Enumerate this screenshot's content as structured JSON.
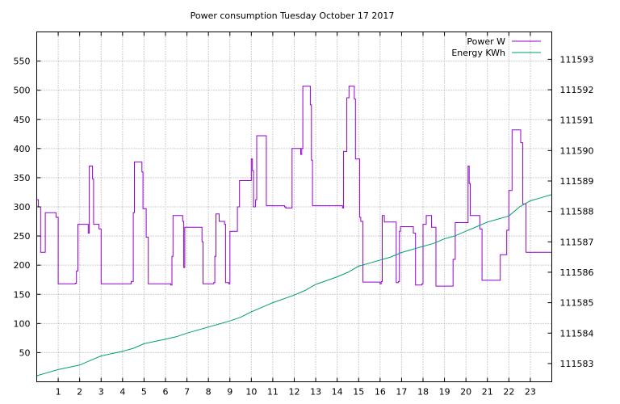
{
  "chart_data": {
    "type": "line",
    "title": "Power consumption Tuesday October 17 2017",
    "xlabel": "",
    "ylabel": "",
    "y2label": "",
    "grid": true,
    "legend_position": "top-right",
    "xlim": [
      0,
      24
    ],
    "ylim": [
      0,
      600
    ],
    "y2lim": [
      111582.4,
      111593.9
    ],
    "x_ticks": [
      1,
      2,
      3,
      4,
      5,
      6,
      7,
      8,
      9,
      10,
      11,
      12,
      13,
      14,
      15,
      16,
      17,
      18,
      19,
      20,
      21,
      22,
      23
    ],
    "y_ticks": [
      50,
      100,
      150,
      200,
      250,
      300,
      350,
      400,
      450,
      500,
      550
    ],
    "y2_ticks": [
      111583,
      111584,
      111585,
      111586,
      111587,
      111588,
      111589,
      111590,
      111591,
      111592,
      111593
    ],
    "series": [
      {
        "name": "Power W",
        "color": "#9400d3",
        "axis": "left",
        "step": true,
        "points": [
          [
            0.0,
            312
          ],
          [
            0.08,
            300
          ],
          [
            0.18,
            222
          ],
          [
            0.4,
            290
          ],
          [
            0.9,
            282
          ],
          [
            1.0,
            168
          ],
          [
            1.8,
            169
          ],
          [
            1.85,
            190
          ],
          [
            1.92,
            270
          ],
          [
            2.4,
            255
          ],
          [
            2.45,
            370
          ],
          [
            2.6,
            348
          ],
          [
            2.65,
            270
          ],
          [
            2.9,
            262
          ],
          [
            3.0,
            168
          ],
          [
            4.4,
            172
          ],
          [
            4.5,
            290
          ],
          [
            4.55,
            377
          ],
          [
            4.9,
            360
          ],
          [
            4.95,
            297
          ],
          [
            5.1,
            248
          ],
          [
            5.2,
            168
          ],
          [
            6.25,
            166
          ],
          [
            6.3,
            215
          ],
          [
            6.35,
            285
          ],
          [
            6.8,
            275
          ],
          [
            6.85,
            196
          ],
          [
            6.9,
            265
          ],
          [
            7.7,
            240
          ],
          [
            7.75,
            168
          ],
          [
            8.25,
            170
          ],
          [
            8.3,
            215
          ],
          [
            8.35,
            288
          ],
          [
            8.5,
            275
          ],
          [
            8.75,
            270
          ],
          [
            8.8,
            170
          ],
          [
            8.95,
            168
          ],
          [
            9.0,
            258
          ],
          [
            9.35,
            300
          ],
          [
            9.45,
            345
          ],
          [
            10.0,
            382
          ],
          [
            10.05,
            362
          ],
          [
            10.1,
            300
          ],
          [
            10.2,
            312
          ],
          [
            10.25,
            422
          ],
          [
            10.7,
            302
          ],
          [
            11.55,
            300
          ],
          [
            11.6,
            298
          ],
          [
            11.9,
            400
          ],
          [
            12.3,
            390
          ],
          [
            12.35,
            400
          ],
          [
            12.4,
            507
          ],
          [
            12.75,
            475
          ],
          [
            12.8,
            380
          ],
          [
            12.85,
            302
          ],
          [
            14.25,
            298
          ],
          [
            14.3,
            395
          ],
          [
            14.45,
            487
          ],
          [
            14.55,
            507
          ],
          [
            14.8,
            485
          ],
          [
            14.85,
            382
          ],
          [
            15.05,
            282
          ],
          [
            15.1,
            275
          ],
          [
            15.2,
            171
          ],
          [
            16.0,
            168
          ],
          [
            16.05,
            172
          ],
          [
            16.1,
            285
          ],
          [
            16.2,
            274
          ],
          [
            16.75,
            170
          ],
          [
            16.85,
            172
          ],
          [
            16.9,
            258
          ],
          [
            16.95,
            266
          ],
          [
            17.55,
            255
          ],
          [
            17.65,
            166
          ],
          [
            17.95,
            168
          ],
          [
            18.0,
            270
          ],
          [
            18.15,
            285
          ],
          [
            18.4,
            265
          ],
          [
            18.6,
            164
          ],
          [
            19.35,
            164
          ],
          [
            19.4,
            210
          ],
          [
            19.5,
            273
          ],
          [
            20.1,
            370
          ],
          [
            20.15,
            340
          ],
          [
            20.2,
            285
          ],
          [
            20.65,
            262
          ],
          [
            20.75,
            174
          ],
          [
            21.5,
            174
          ],
          [
            21.6,
            218
          ],
          [
            21.9,
            260
          ],
          [
            22.0,
            328
          ],
          [
            22.15,
            432
          ],
          [
            22.55,
            410
          ],
          [
            22.65,
            305
          ],
          [
            22.8,
            222
          ],
          [
            24.0,
            222
          ]
        ]
      },
      {
        "name": "Energy KWh",
        "color": "#009e73",
        "axis": "right",
        "step": false,
        "points": [
          [
            0.0,
            111582.6
          ],
          [
            0.5,
            111582.7
          ],
          [
            1.0,
            111582.8
          ],
          [
            2.0,
            111582.95
          ],
          [
            2.5,
            111583.1
          ],
          [
            3.0,
            111583.25
          ],
          [
            4.0,
            111583.4
          ],
          [
            4.5,
            111583.5
          ],
          [
            5.0,
            111583.65
          ],
          [
            6.0,
            111583.8
          ],
          [
            6.5,
            111583.88
          ],
          [
            7.0,
            111584.0
          ],
          [
            8.0,
            111584.2
          ],
          [
            8.5,
            111584.3
          ],
          [
            9.0,
            111584.4
          ],
          [
            9.5,
            111584.52
          ],
          [
            10.0,
            111584.7
          ],
          [
            10.5,
            111584.85
          ],
          [
            11.0,
            111585.0
          ],
          [
            12.0,
            111585.25
          ],
          [
            12.5,
            111585.4
          ],
          [
            13.0,
            111585.6
          ],
          [
            14.0,
            111585.85
          ],
          [
            14.5,
            111586.0
          ],
          [
            15.0,
            111586.2
          ],
          [
            15.5,
            111586.3
          ],
          [
            16.0,
            111586.4
          ],
          [
            16.5,
            111586.5
          ],
          [
            17.0,
            111586.65
          ],
          [
            17.5,
            111586.75
          ],
          [
            18.0,
            111586.85
          ],
          [
            18.5,
            111586.95
          ],
          [
            19.0,
            111587.1
          ],
          [
            19.5,
            111587.2
          ],
          [
            20.0,
            111587.35
          ],
          [
            20.5,
            111587.5
          ],
          [
            21.0,
            111587.65
          ],
          [
            21.5,
            111587.75
          ],
          [
            22.0,
            111587.85
          ],
          [
            22.5,
            111588.15
          ],
          [
            23.0,
            111588.35
          ],
          [
            23.5,
            111588.45
          ],
          [
            24.0,
            111588.55
          ]
        ]
      }
    ]
  }
}
